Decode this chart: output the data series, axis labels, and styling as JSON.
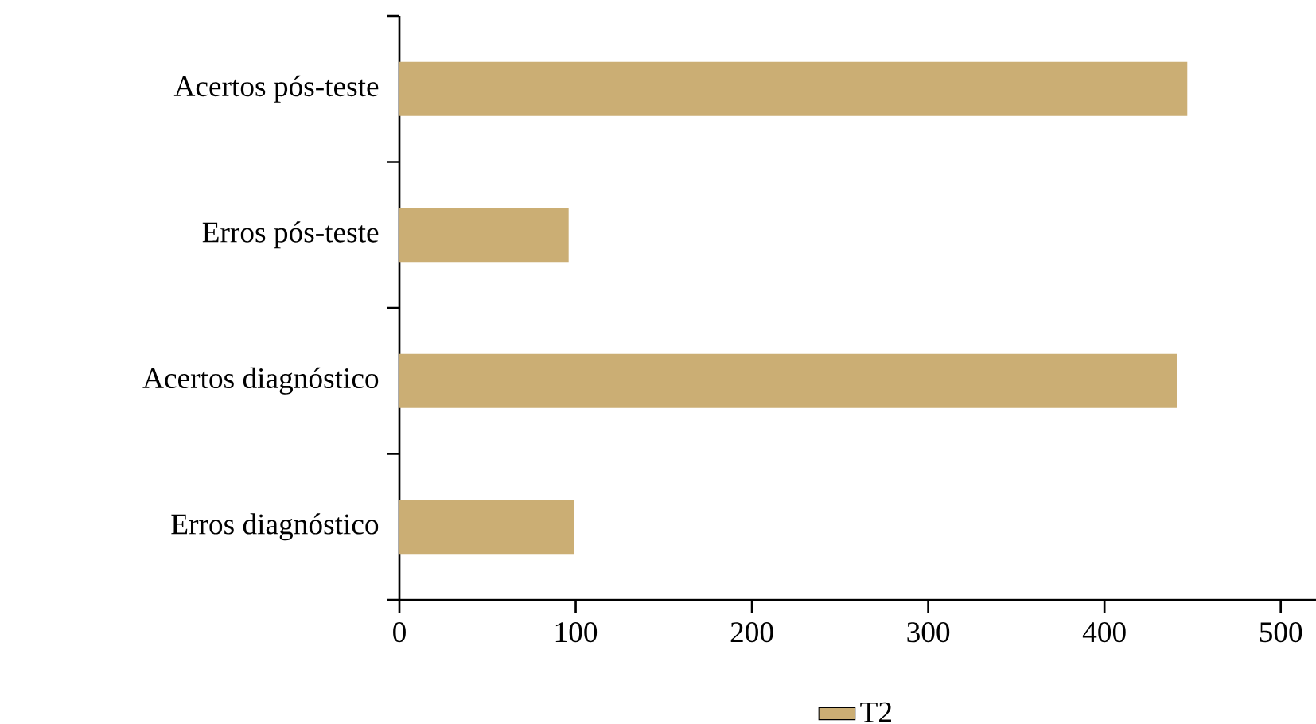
{
  "chart_data": {
    "type": "bar",
    "orientation": "horizontal",
    "categories": [
      "Acertos pós-teste",
      "Erros pós-teste",
      "Acertos diagnóstico",
      "Erros diagnóstico"
    ],
    "series": [
      {
        "name": "T2",
        "color": "#cbae74",
        "values": [
          447,
          96,
          441,
          99
        ]
      }
    ],
    "xlim": [
      0,
      520
    ],
    "xticks": [
      0,
      100,
      200,
      300,
      400,
      500
    ],
    "grid": false,
    "legend": "bottom"
  }
}
